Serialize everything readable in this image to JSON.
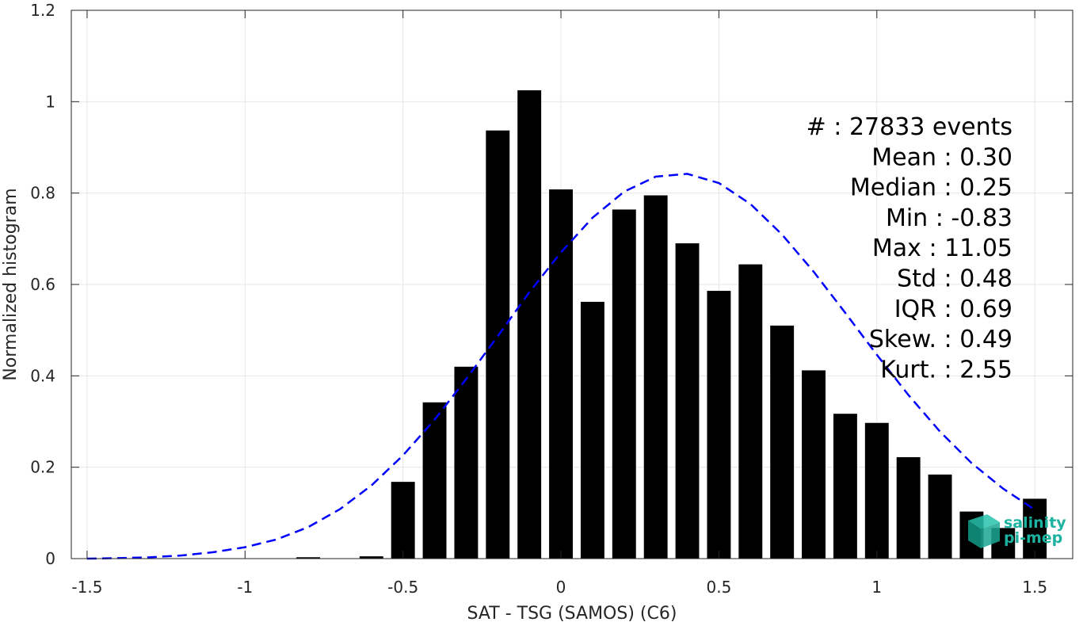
{
  "chart_data": {
    "type": "bar",
    "xlabel": "SAT - TSG (SAMOS) (C6)",
    "ylabel": "Normalized histogram",
    "xlim": [
      -1.55,
      1.62
    ],
    "ylim": [
      0,
      1.2
    ],
    "grid": true,
    "xticks": [
      "-1.5",
      "-1",
      "-0.5",
      "0",
      "0.5",
      "1",
      "1.5"
    ],
    "xtick_values": [
      -1.5,
      -1,
      -0.5,
      0,
      0.5,
      1,
      1.5
    ],
    "yticks": [
      "0",
      "0.2",
      "0.4",
      "0.6",
      "0.8",
      "1",
      "1.2"
    ],
    "ytick_values": [
      0,
      0.2,
      0.4,
      0.6,
      0.8,
      1.0,
      1.2
    ],
    "bar_color": "#000000",
    "bar_width": 0.075,
    "bars": {
      "x": [
        -0.8,
        -0.6,
        -0.5,
        -0.4,
        -0.3,
        -0.2,
        -0.1,
        0.0,
        0.1,
        0.2,
        0.3,
        0.4,
        0.5,
        0.6,
        0.7,
        0.8,
        0.9,
        1.0,
        1.1,
        1.2,
        1.3,
        1.4,
        1.5
      ],
      "y": [
        0.003,
        0.005,
        0.168,
        0.342,
        0.42,
        0.937,
        1.025,
        0.808,
        0.562,
        0.764,
        0.795,
        0.69,
        0.586,
        0.644,
        0.51,
        0.412,
        0.317,
        0.297,
        0.222,
        0.184,
        0.103,
        0.067,
        0.131
      ]
    },
    "fit": {
      "style": "dashed",
      "color": "#0000ff",
      "x": [
        -1.5,
        -1.4,
        -1.3,
        -1.2,
        -1.1,
        -1.0,
        -0.9,
        -0.8,
        -0.7,
        -0.6,
        -0.5,
        -0.4,
        -0.3,
        -0.2,
        -0.1,
        0.0,
        0.1,
        0.2,
        0.3,
        0.4,
        0.5,
        0.6,
        0.7,
        0.8,
        0.9,
        1.0,
        1.1,
        1.2,
        1.3,
        1.4,
        1.5
      ],
      "y": [
        0.0,
        0.001,
        0.003,
        0.007,
        0.014,
        0.025,
        0.042,
        0.069,
        0.108,
        0.16,
        0.226,
        0.304,
        0.393,
        0.487,
        0.583,
        0.67,
        0.746,
        0.803,
        0.836,
        0.842,
        0.822,
        0.776,
        0.709,
        0.628,
        0.538,
        0.446,
        0.358,
        0.278,
        0.209,
        0.153,
        0.107
      ]
    },
    "stats": [
      "#  : 27833 events",
      "Mean : 0.30",
      "Median : 0.25",
      "Min : -0.83",
      "Max : 11.05",
      "Std : 0.48",
      "IQR : 0.69",
      "Skew. : 0.49",
      "Kurt. : 2.55"
    ]
  },
  "logo": {
    "line1": "salinity",
    "line2": "pi-mep",
    "color": "#1bb3a0"
  }
}
